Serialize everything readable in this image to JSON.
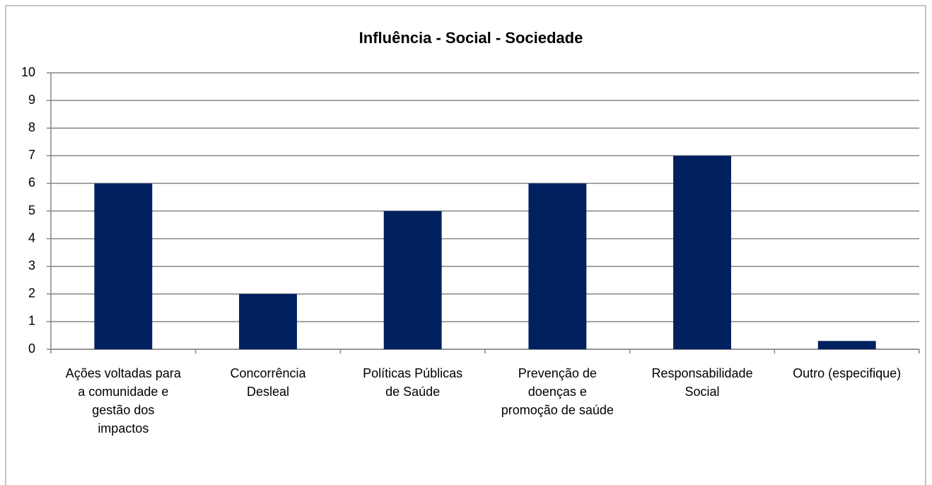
{
  "chart_data": {
    "type": "bar",
    "title": "Influência - Social - Sociedade",
    "categories": [
      "Ações voltadas para a comunidade e gestão dos impactos",
      "Concorrência Desleal",
      "Políticas Públicas de Saúde",
      "Prevenção de doenças e promoção de saúde",
      "Responsabilidade Social",
      "Outro (especifique)"
    ],
    "values": [
      6,
      2,
      5,
      6,
      7,
      0.3
    ],
    "color": "#002060",
    "ylim": [
      0,
      10
    ],
    "yticks": [
      0,
      1,
      2,
      3,
      4,
      5,
      6,
      7,
      8,
      9,
      10
    ],
    "grid": true
  }
}
